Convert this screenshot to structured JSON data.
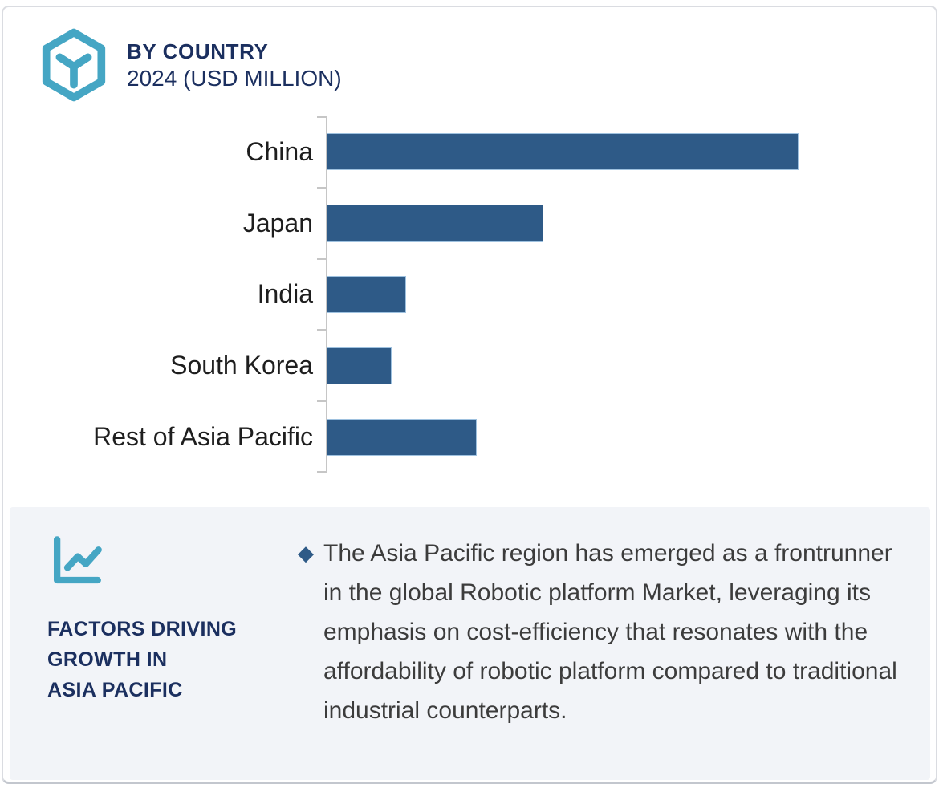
{
  "header": {
    "title": "BY COUNTRY",
    "subtitle": "2024 (USD MILLION)"
  },
  "chart_data": {
    "type": "bar",
    "orientation": "horizontal",
    "title": "BY COUNTRY",
    "subtitle": "2024 (USD MILLION)",
    "categories": [
      "China",
      "Japan",
      "India",
      "South Korea",
      "Rest of Asia Pacific"
    ],
    "values": [
      100,
      46,
      17,
      14,
      32
    ],
    "value_scale": "relative, longest bar (China) = 100; no numeric axis labels shown",
    "xlim": [
      0,
      124
    ],
    "grid": false,
    "legend": false,
    "value_labels_shown": false,
    "bar_color": "#2E5A87"
  },
  "factors_panel": {
    "heading_line1": "FACTORS DRIVING",
    "heading_line2": "GROWTH IN",
    "heading_line3": "ASIA PACIFIC",
    "bullet_glyph": "◆",
    "bullet_text": "The Asia Pacific region has emerged as a frontrunner in the global Robotic platform Market, leveraging its emphasis on cost-efficiency that resonates with the affordability of robotic platform compared to traditional industrial counterparts."
  },
  "icons": {
    "header_icon": "cube-hexagon-icon",
    "factors_icon": "line-chart-icon",
    "bullet_icon": "diamond"
  },
  "colors": {
    "accent_teal": "#45A6C4",
    "navy": "#1B2F5F",
    "bar_blue": "#2E5A87",
    "bar_border": "#9EC1DF",
    "panel_bg": "#F2F4F8",
    "body_text": "#3C3C3C",
    "axis_gray": "#C6C6C6"
  }
}
